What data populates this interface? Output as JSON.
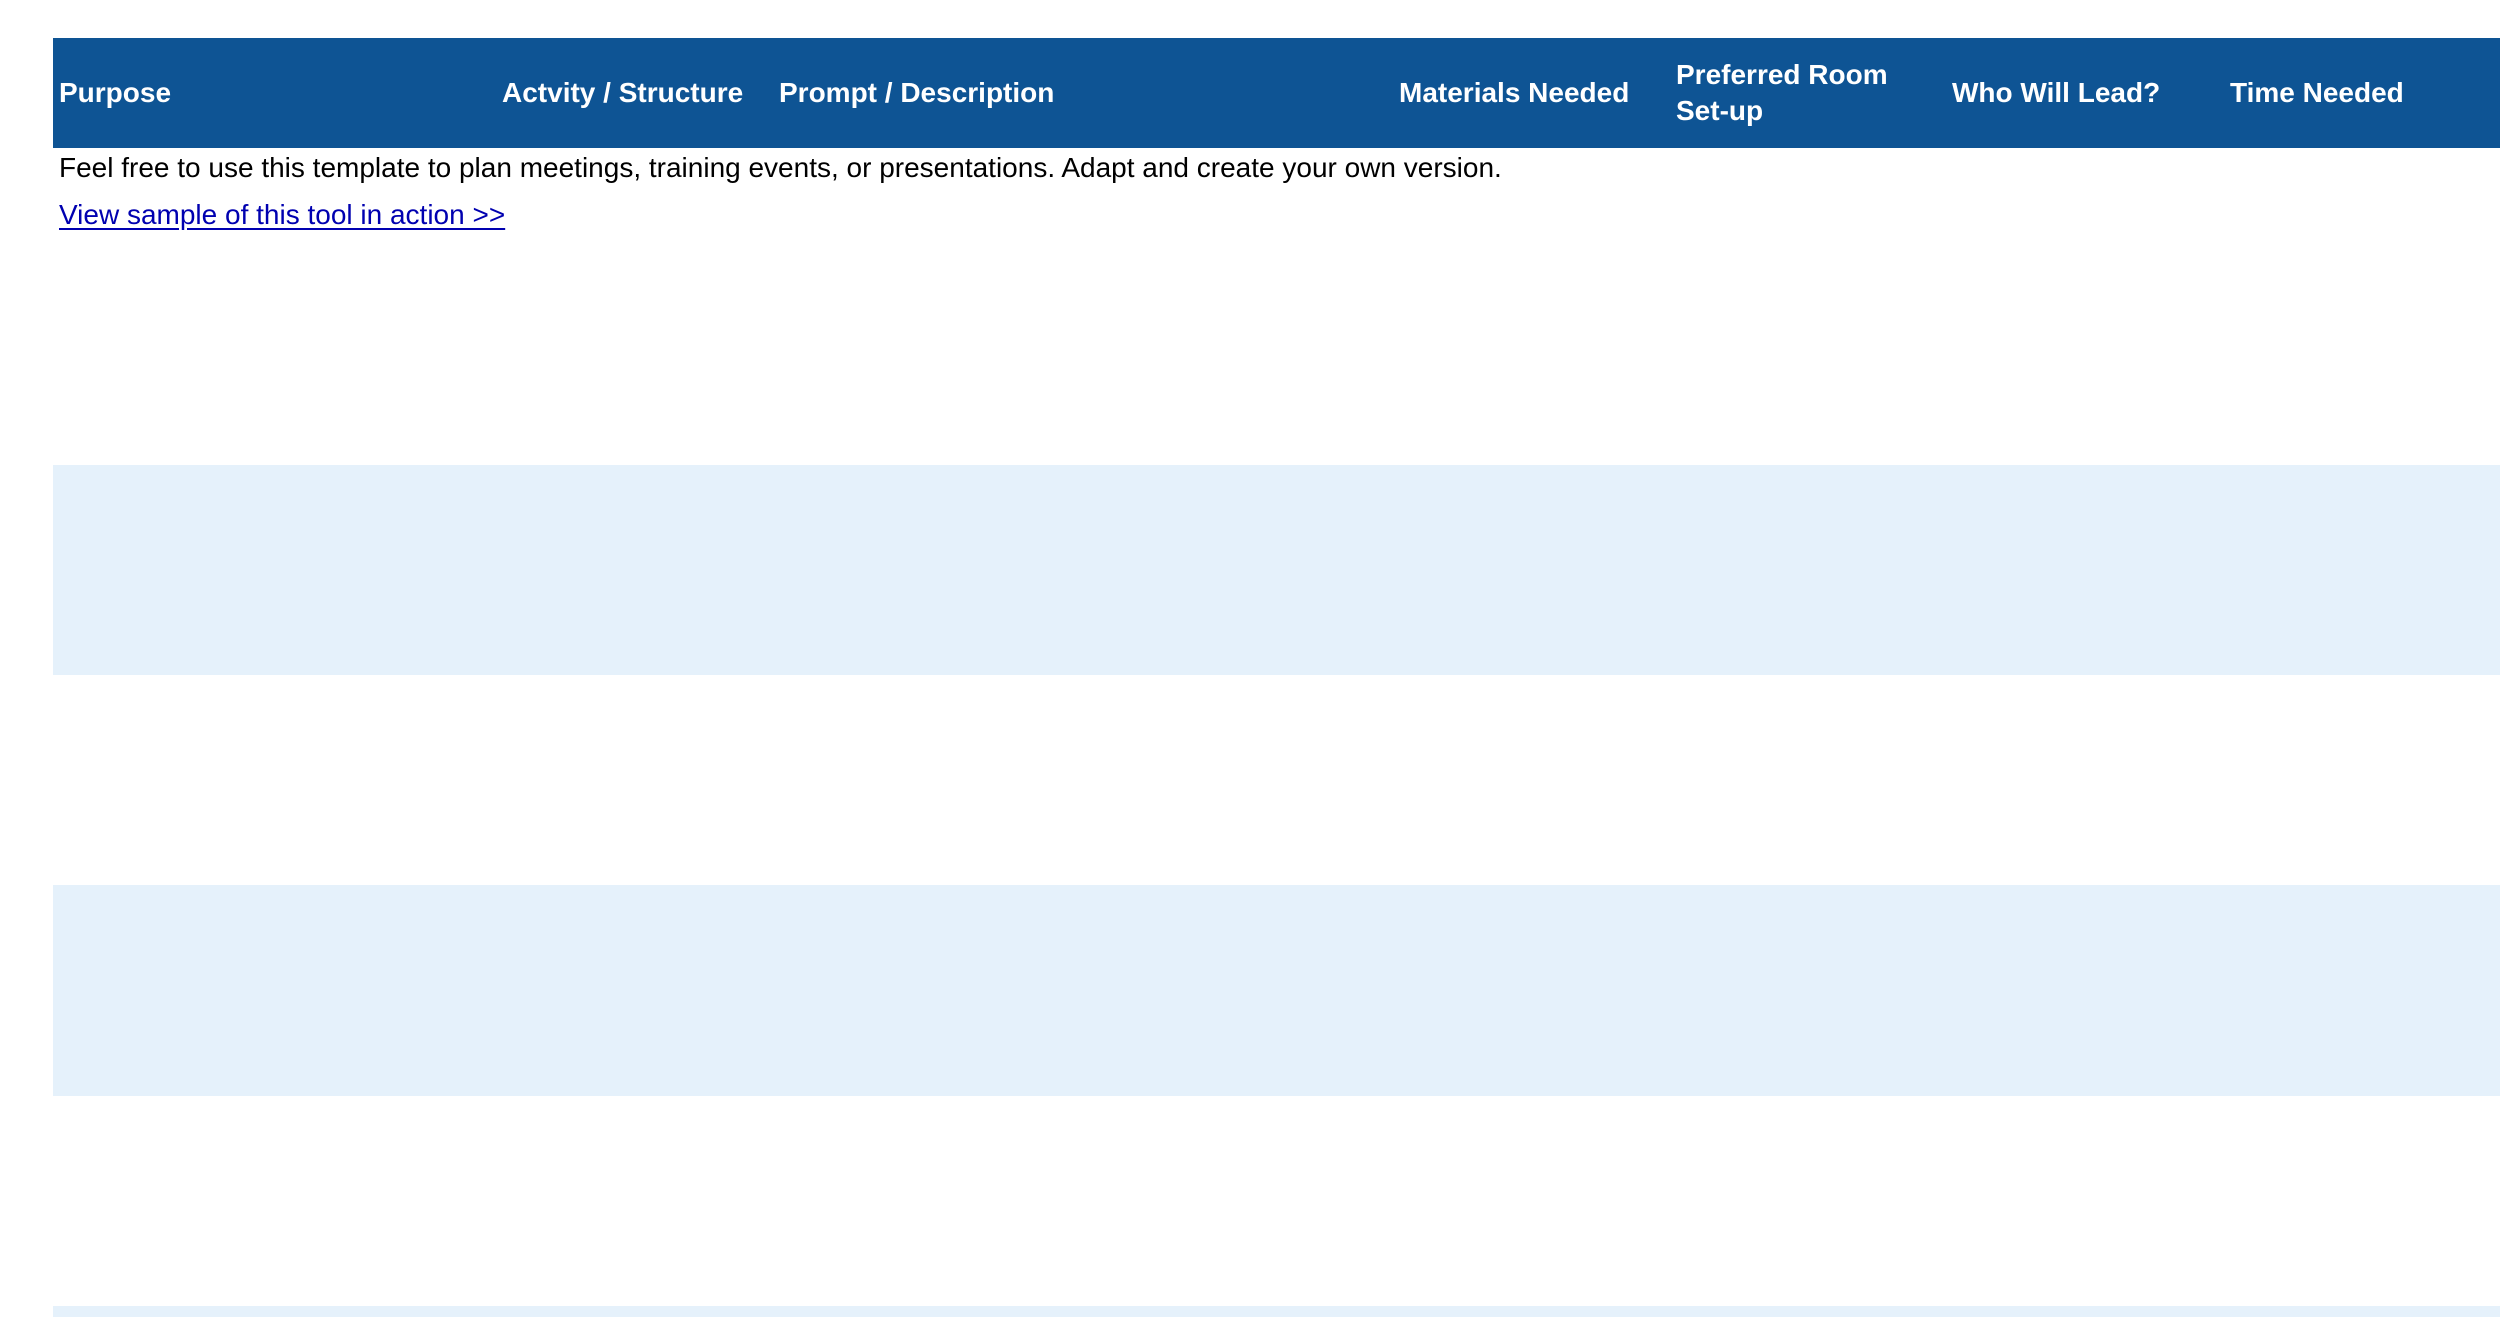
{
  "table": {
    "columns": [
      "Purpose",
      "Actvity / Structure",
      "Prompt / Description",
      "Materials Needed",
      "Preferred Room Set-up",
      "Who Will Lead?",
      "Time Needed"
    ],
    "header_color": "#0e5494",
    "band_color": "#e5f1fb"
  },
  "intro": {
    "description": "Feel free to use this template to plan meetings, training events, or presentations. Adapt and create your own version.",
    "link_text": "View sample of this tool in action >>"
  }
}
